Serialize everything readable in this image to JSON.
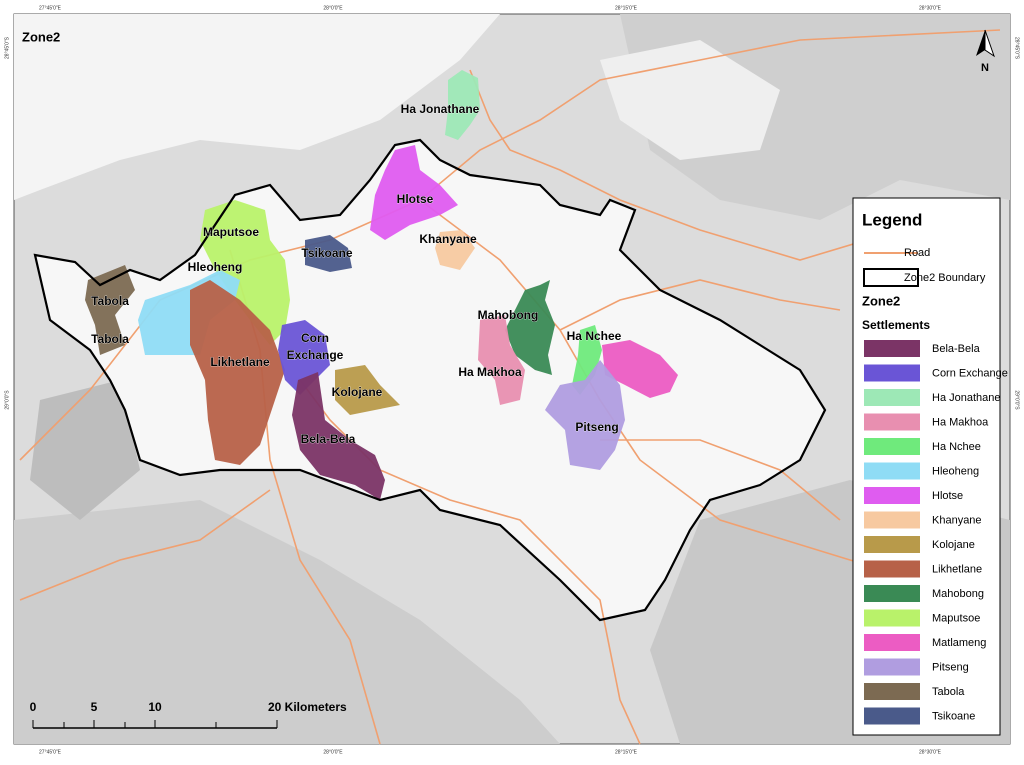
{
  "title": "Zone2",
  "north": "N",
  "coordinates": {
    "top": [
      "27°45'0\"E",
      "28°0'0\"E",
      "28°15'0\"E",
      "28°30'0\"E"
    ],
    "bottom": [
      "27°45'0\"E",
      "28°0'0\"E",
      "28°15'0\"E",
      "28°30'0\"E"
    ],
    "left": [
      "28°45'0\"S",
      "29°0'0\"S"
    ],
    "right": [
      "28°45'0\"S",
      "29°0'0\"S"
    ]
  },
  "map_labels": [
    "Ha Jonathane",
    "Hlotse",
    "Khanyane",
    "Maputsoe",
    "Tsikoane",
    "Hleoheng",
    "Tabola",
    "Tabola",
    "Likhetlane",
    "Corn",
    "Exchange",
    "Kolojane",
    "Bela-Bela",
    "Mahobong",
    "Ha Nchee",
    "Ha Makhoa",
    "Pitseng"
  ],
  "scale_bar": [
    "0",
    "5",
    "10",
    "20 Kilometers"
  ],
  "legend": {
    "title": "Legend",
    "road": "Road",
    "boundary": "Zone2 Boundary",
    "zone": "Zone2",
    "settlements_title": "Settlements",
    "settlements": [
      {
        "name": "Bela-Bela",
        "color": "#7b3466"
      },
      {
        "name": "Corn Exchange",
        "color": "#6a55d6"
      },
      {
        "name": "Ha Jonathane",
        "color": "#9de8b6"
      },
      {
        "name": "Ha Makhoa",
        "color": "#e88fb0"
      },
      {
        "name": "Ha Nchee",
        "color": "#6fea7c"
      },
      {
        "name": "Hleoheng",
        "color": "#8fdcf5"
      },
      {
        "name": "Hlotse",
        "color": "#df5cf0"
      },
      {
        "name": "Khanyane",
        "color": "#f7c9a0"
      },
      {
        "name": "Kolojane",
        "color": "#b89a4a"
      },
      {
        "name": "Likhetlane",
        "color": "#b76148"
      },
      {
        "name": "Mahobong",
        "color": "#3a8a55"
      },
      {
        "name": "Maputsoe",
        "color": "#b9f26a"
      },
      {
        "name": "Matlameng",
        "color": "#ec5cc3"
      },
      {
        "name": "Pitseng",
        "color": "#b09de0"
      },
      {
        "name": "Tabola",
        "color": "#7c6a52"
      },
      {
        "name": "Tsikoane",
        "color": "#4a5a8a"
      }
    ]
  }
}
